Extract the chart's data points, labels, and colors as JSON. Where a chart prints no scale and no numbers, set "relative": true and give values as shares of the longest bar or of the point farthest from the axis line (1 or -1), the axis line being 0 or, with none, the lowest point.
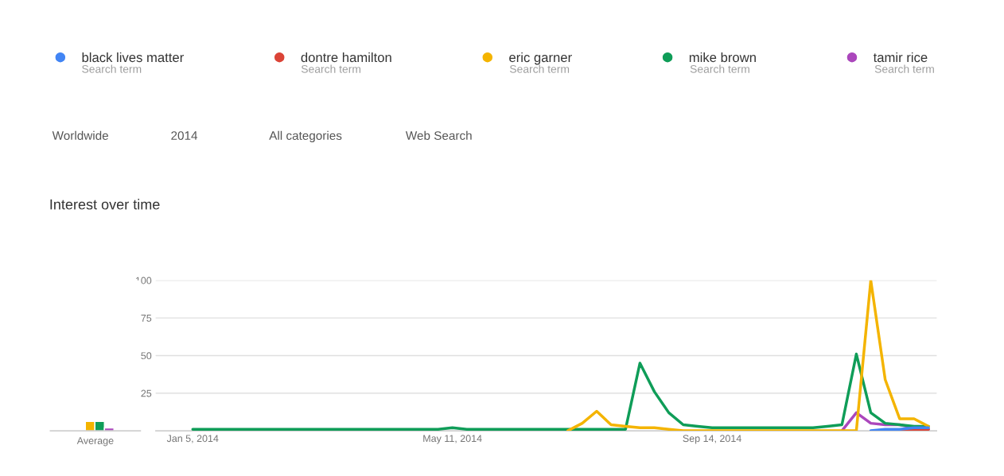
{
  "chart_data": [
    {
      "type": "line",
      "title": "Interest over time",
      "legend": "top",
      "grid": "y",
      "marker": "none",
      "line_style": "solid",
      "annotations": [
        "Search term",
        "Search term",
        "Search term",
        "Search term",
        "Search term",
        "Worldwide",
        "2014",
        "All categories",
        "Web Search"
      ],
      "x": [
        "2014-01-05",
        "2014-01-12",
        "2014-01-19",
        "2014-01-26",
        "2014-02-02",
        "2014-02-09",
        "2014-02-16",
        "2014-02-23",
        "2014-03-02",
        "2014-03-09",
        "2014-03-16",
        "2014-03-23",
        "2014-03-30",
        "2014-04-06",
        "2014-04-13",
        "2014-04-20",
        "2014-04-27",
        "2014-05-04",
        "2014-05-11",
        "2014-05-18",
        "2014-05-25",
        "2014-06-01",
        "2014-06-08",
        "2014-06-15",
        "2014-06-22",
        "2014-06-29",
        "2014-07-06",
        "2014-07-13",
        "2014-07-20",
        "2014-07-27",
        "2014-08-03",
        "2014-08-10",
        "2014-08-17",
        "2014-08-24",
        "2014-08-31",
        "2014-09-07",
        "2014-09-14",
        "2014-09-21",
        "2014-09-28",
        "2014-10-05",
        "2014-10-12",
        "2014-10-19",
        "2014-10-26",
        "2014-11-02",
        "2014-11-09",
        "2014-11-16",
        "2014-11-23",
        "2014-11-30",
        "2014-12-07",
        "2014-12-14",
        "2014-12-21",
        "2014-12-28"
      ],
      "xlim": [
        "2013-12-18",
        "2015-01-01"
      ],
      "xticks": [
        {
          "value": "2014-01-05",
          "label": "Jan 5, 2014"
        },
        {
          "value": "2014-05-11",
          "label": "May 11, 2014"
        },
        {
          "value": "2014-09-14",
          "label": "Sep 14, 2014"
        }
      ],
      "ylim": [
        0,
        100
      ],
      "yticks": [
        25,
        50,
        75,
        100
      ],
      "series": [
        {
          "name": "black lives matter",
          "color": "#4285f4",
          "values": [
            null,
            null,
            null,
            null,
            null,
            null,
            null,
            null,
            null,
            null,
            null,
            null,
            null,
            null,
            null,
            null,
            null,
            null,
            null,
            null,
            null,
            null,
            null,
            null,
            null,
            null,
            null,
            null,
            null,
            null,
            null,
            null,
            null,
            null,
            null,
            null,
            null,
            null,
            null,
            null,
            null,
            null,
            null,
            null,
            null,
            null,
            null,
            0,
            1,
            1,
            2,
            2
          ]
        },
        {
          "name": "dontre hamilton",
          "color": "#db4437",
          "values": [
            null,
            null,
            null,
            null,
            null,
            null,
            null,
            null,
            null,
            null,
            null,
            null,
            null,
            null,
            null,
            null,
            null,
            null,
            null,
            null,
            null,
            null,
            null,
            null,
            null,
            null,
            null,
            null,
            null,
            null,
            null,
            null,
            null,
            null,
            null,
            null,
            null,
            null,
            null,
            null,
            null,
            null,
            null,
            null,
            null,
            null,
            null,
            null,
            null,
            0,
            1,
            1
          ]
        },
        {
          "name": "eric garner",
          "color": "#f4b400",
          "values": [
            null,
            null,
            null,
            null,
            null,
            null,
            null,
            null,
            null,
            null,
            null,
            null,
            null,
            null,
            null,
            null,
            null,
            null,
            null,
            null,
            null,
            null,
            null,
            null,
            null,
            null,
            0,
            5,
            13,
            4,
            3,
            2,
            2,
            1,
            0,
            null,
            null,
            null,
            null,
            null,
            null,
            null,
            null,
            null,
            null,
            null,
            0,
            100,
            34,
            8,
            8,
            3
          ]
        },
        {
          "name": "mike brown",
          "color": "#0f9d58",
          "values": [
            1,
            1,
            1,
            1,
            1,
            1,
            1,
            1,
            1,
            1,
            1,
            1,
            1,
            1,
            1,
            1,
            1,
            1,
            2,
            1,
            1,
            1,
            1,
            1,
            1,
            1,
            1,
            1,
            1,
            1,
            1,
            45,
            26,
            12,
            4,
            3,
            2,
            2,
            2,
            2,
            2,
            2,
            2,
            2,
            3,
            4,
            51,
            12,
            5,
            4,
            3,
            3
          ]
        },
        {
          "name": "tamir rice",
          "color": "#ab47bc",
          "values": [
            null,
            null,
            null,
            null,
            null,
            null,
            null,
            null,
            null,
            null,
            null,
            null,
            null,
            null,
            null,
            null,
            null,
            null,
            null,
            null,
            null,
            null,
            null,
            null,
            null,
            null,
            null,
            null,
            null,
            null,
            null,
            null,
            null,
            null,
            null,
            null,
            null,
            null,
            null,
            null,
            null,
            null,
            null,
            null,
            null,
            0,
            12,
            5,
            4,
            4,
            2,
            1
          ]
        }
      ]
    },
    {
      "type": "bar",
      "relative": true,
      "xlabel": "Average",
      "categories": [
        null,
        null,
        null
      ],
      "values": [
        1,
        1,
        0.3
      ],
      "colors": [
        "#f4b400",
        "#0f9d58",
        "#ab47bc"
      ]
    }
  ]
}
